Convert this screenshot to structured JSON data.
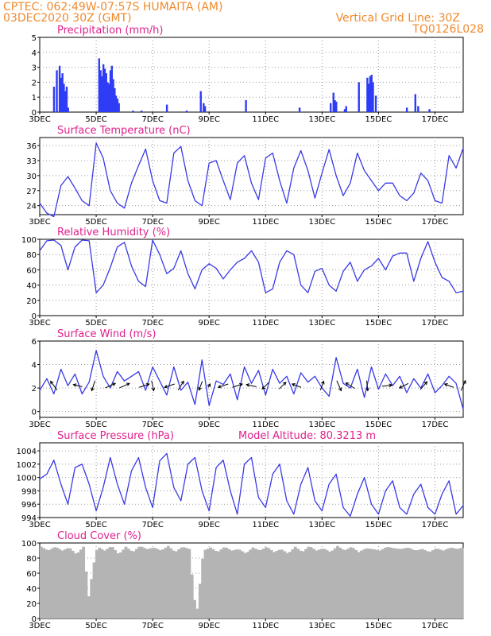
{
  "header": {
    "line1": "CPTEC:   062:49W-07:57S   HUMAITA (AM)",
    "line2": "03DEC2020 30Z (GMT)",
    "grid_note": "Vertical Grid Line: 30Z",
    "code": "TQ0126L028"
  },
  "colors": {
    "line": "#3a3ae6",
    "bar": "#2f3cf5",
    "cloud": "#b4b4b4",
    "title": "#e0208c",
    "header": "#f08a2c",
    "arrow": "#000000"
  },
  "x_tick_labels": [
    "3DEC",
    "5DEC",
    "7DEC",
    "9DEC",
    "11DEC",
    "13DEC",
    "15DEC",
    "17DEC"
  ],
  "chart_data": [
    {
      "id": "precip",
      "type": "bar",
      "title": "Precipitation (mm/h)",
      "ylim": [
        0,
        5
      ],
      "yticks": [
        0,
        1,
        2,
        3,
        4,
        5
      ],
      "x_days": [
        3.5,
        3.6,
        3.7,
        3.75,
        3.8,
        3.85,
        3.9,
        3.95,
        4.0,
        5.1,
        5.15,
        5.2,
        5.25,
        5.3,
        5.35,
        5.4,
        5.45,
        5.5,
        5.55,
        5.6,
        5.65,
        5.7,
        5.75,
        5.8,
        6.3,
        6.6,
        7.5,
        8.2,
        8.7,
        8.8,
        8.85,
        10.3,
        12.2,
        13.3,
        13.4,
        13.45,
        13.5,
        13.8,
        13.85,
        14.3,
        14.6,
        14.65,
        14.7,
        14.75,
        14.8,
        14.9,
        16.0,
        16.3,
        16.4,
        16.8
      ],
      "values": [
        1.7,
        2.8,
        3.1,
        2.3,
        2.6,
        1.9,
        1.4,
        1.7,
        0.3,
        3.6,
        2.8,
        2.4,
        3.2,
        2.9,
        2.6,
        2.0,
        1.9,
        2.8,
        3.1,
        2.2,
        1.6,
        1.1,
        0.9,
        0.6,
        0.1,
        0.1,
        0.5,
        0.1,
        1.4,
        0.6,
        0.4,
        0.8,
        0.3,
        0.6,
        1.3,
        0.8,
        0.7,
        0.2,
        0.4,
        2.0,
        2.3,
        1.9,
        2.4,
        2.5,
        2.0,
        1.1,
        0.3,
        1.2,
        0.4,
        0.2
      ]
    },
    {
      "id": "temp",
      "type": "line",
      "title": "Surface Temperature (nC)",
      "ylim": [
        22.2,
        37.6
      ],
      "yticks": [
        24,
        27,
        30,
        33,
        36
      ],
      "x_days": [
        3.0,
        3.25,
        3.5,
        3.75,
        4.0,
        4.25,
        4.5,
        4.75,
        5.0,
        5.25,
        5.5,
        5.75,
        6.0,
        6.25,
        6.5,
        6.75,
        7.0,
        7.25,
        7.5,
        7.75,
        8.0,
        8.25,
        8.5,
        8.75,
        9.0,
        9.25,
        9.5,
        9.75,
        10.0,
        10.25,
        10.5,
        10.75,
        11.0,
        11.25,
        11.5,
        11.75,
        12.0,
        12.25,
        12.5,
        12.75,
        13.0,
        13.25,
        13.5,
        13.75,
        14.0,
        14.25,
        14.5,
        14.75,
        15.0,
        15.25,
        15.5,
        15.75,
        16.0,
        16.25,
        16.5,
        16.75,
        17.0,
        17.25,
        17.5,
        17.75,
        18.0
      ],
      "values": [
        24.5,
        22.5,
        21.8,
        28.0,
        29.8,
        27.5,
        25.0,
        24.0,
        36.5,
        33.5,
        27.0,
        24.5,
        23.5,
        28.5,
        32.0,
        35.3,
        29.0,
        25.0,
        24.5,
        34.5,
        35.8,
        29.0,
        25.0,
        24.0,
        32.5,
        33.0,
        29.0,
        25.2,
        32.5,
        34.0,
        28.5,
        25.2,
        33.5,
        34.5,
        29.0,
        24.5,
        31.5,
        35.0,
        31.0,
        25.5,
        30.5,
        35.2,
        30.0,
        26.0,
        28.5,
        34.5,
        31.0,
        29.0,
        27.0,
        28.5,
        28.5,
        26.0,
        25.0,
        26.5,
        30.5,
        29.0,
        25.0,
        24.5,
        34.0,
        31.5,
        35.5
      ]
    },
    {
      "id": "rh",
      "type": "line",
      "title": "Relative Humidity (%)",
      "ylim": [
        0,
        100
      ],
      "yticks": [
        0,
        20,
        40,
        60,
        80,
        100
      ],
      "x_days": [
        3.0,
        3.25,
        3.5,
        3.75,
        4.0,
        4.25,
        4.5,
        4.75,
        5.0,
        5.25,
        5.5,
        5.75,
        6.0,
        6.25,
        6.5,
        6.75,
        7.0,
        7.25,
        7.5,
        7.75,
        8.0,
        8.25,
        8.5,
        8.75,
        9.0,
        9.25,
        9.5,
        9.75,
        10.0,
        10.25,
        10.5,
        10.75,
        11.0,
        11.25,
        11.5,
        11.75,
        12.0,
        12.25,
        12.5,
        12.75,
        13.0,
        13.25,
        13.5,
        13.75,
        14.0,
        14.25,
        14.5,
        14.75,
        15.0,
        15.25,
        15.5,
        15.75,
        16.0,
        16.25,
        16.5,
        16.75,
        17.0,
        17.25,
        17.5,
        17.75,
        18.0
      ],
      "values": [
        85,
        98,
        99,
        92,
        60,
        90,
        99,
        98,
        30,
        40,
        63,
        90,
        96,
        65,
        45,
        38,
        99,
        80,
        55,
        62,
        85,
        55,
        35,
        60,
        68,
        62,
        48,
        60,
        70,
        75,
        85,
        70,
        30,
        35,
        70,
        85,
        80,
        40,
        30,
        58,
        62,
        40,
        32,
        58,
        70,
        45,
        60,
        65,
        75,
        60,
        78,
        82,
        82,
        45,
        75,
        97,
        70,
        50,
        45,
        30,
        32
      ]
    },
    {
      "id": "wind",
      "type": "line",
      "title": "Surface Wind (m/s)",
      "ylim": [
        -0.5,
        6
      ],
      "yticks": [
        0,
        2,
        4,
        6
      ],
      "x_days": [
        3.0,
        3.25,
        3.5,
        3.75,
        4.0,
        4.25,
        4.5,
        4.75,
        5.0,
        5.25,
        5.5,
        5.75,
        6.0,
        6.25,
        6.5,
        6.75,
        7.0,
        7.25,
        7.5,
        7.75,
        8.0,
        8.25,
        8.5,
        8.75,
        9.0,
        9.25,
        9.5,
        9.75,
        10.0,
        10.25,
        10.5,
        10.75,
        11.0,
        11.25,
        11.5,
        11.75,
        12.0,
        12.25,
        12.5,
        12.75,
        13.0,
        13.25,
        13.5,
        13.75,
        14.0,
        14.25,
        14.5,
        14.75,
        15.0,
        15.25,
        15.5,
        15.75,
        16.0,
        16.25,
        16.5,
        16.75,
        17.0,
        17.25,
        17.5,
        17.75,
        18.0
      ],
      "values": [
        1.8,
        2.8,
        1.5,
        3.6,
        2.2,
        3.2,
        1.5,
        2.5,
        5.2,
        3.0,
        2.0,
        3.4,
        2.6,
        3.0,
        3.4,
        1.8,
        3.8,
        2.6,
        1.4,
        3.8,
        1.8,
        2.5,
        0.6,
        4.4,
        0.5,
        2.6,
        2.3,
        3.2,
        1.0,
        3.8,
        2.4,
        3.5,
        1.4,
        3.6,
        2.4,
        3.0,
        1.5,
        3.3,
        2.5,
        3.0,
        2.0,
        1.3,
        4.6,
        2.4,
        2.0,
        3.6,
        1.2,
        3.8,
        1.9,
        3.2,
        2.2,
        3.0,
        1.6,
        2.8,
        2.0,
        3.2,
        1.6,
        2.2,
        3.0,
        2.4,
        0.2
      ],
      "vectors": [
        {
          "day": 3.5,
          "u": -0.6,
          "v": 0.8
        },
        {
          "day": 4.35,
          "u": -0.8,
          "v": 0.2
        },
        {
          "day": 4.9,
          "u": -0.3,
          "v": -0.9
        },
        {
          "day": 5.5,
          "u": 0.9,
          "v": 0.4
        },
        {
          "day": 6.0,
          "u": 0.9,
          "v": 0.4
        },
        {
          "day": 6.7,
          "u": 0.9,
          "v": 0.3
        },
        {
          "day": 7.0,
          "u": 0.2,
          "v": -0.9
        },
        {
          "day": 7.6,
          "u": -0.9,
          "v": -0.3
        },
        {
          "day": 8.0,
          "u": 0.5,
          "v": 0.8
        },
        {
          "day": 8.7,
          "u": -0.3,
          "v": -0.8
        },
        {
          "day": 9.0,
          "u": 0.2,
          "v": 0.3
        },
        {
          "day": 9.5,
          "u": -0.9,
          "v": -0.3
        },
        {
          "day": 10.0,
          "u": 0.9,
          "v": 0.3
        },
        {
          "day": 10.5,
          "u": -0.9,
          "v": 0.2
        },
        {
          "day": 11.0,
          "u": -0.6,
          "v": -0.6
        },
        {
          "day": 11.6,
          "u": 0.6,
          "v": 0.6
        },
        {
          "day": 12.1,
          "u": -0.8,
          "v": 0.3
        },
        {
          "day": 13.0,
          "u": 0.3,
          "v": 0.8
        },
        {
          "day": 13.6,
          "u": 0.4,
          "v": -0.9
        },
        {
          "day": 14.0,
          "u": -0.8,
          "v": 0.5
        },
        {
          "day": 14.6,
          "u": 0.1,
          "v": -0.9
        },
        {
          "day": 15.3,
          "u": 0.9,
          "v": 0.1
        },
        {
          "day": 15.9,
          "u": -0.8,
          "v": -0.4
        },
        {
          "day": 16.6,
          "u": 0.6,
          "v": 0.7
        },
        {
          "day": 17.5,
          "u": -0.8,
          "v": 0.3
        },
        {
          "day": 18.0,
          "u": 0.4,
          "v": 0.9
        }
      ]
    },
    {
      "id": "pres",
      "type": "line",
      "title": "Surface Pressure (hPa)",
      "annotation": "Model Altitude: 80.3213 m",
      "ylim": [
        994,
        1005.2
      ],
      "yticks": [
        994,
        996,
        998,
        1000,
        1002,
        1004
      ],
      "x_days": [
        3.0,
        3.25,
        3.5,
        3.75,
        4.0,
        4.25,
        4.5,
        4.75,
        5.0,
        5.25,
        5.5,
        5.75,
        6.0,
        6.25,
        6.5,
        6.75,
        7.0,
        7.25,
        7.5,
        7.75,
        8.0,
        8.25,
        8.5,
        8.75,
        9.0,
        9.25,
        9.5,
        9.75,
        10.0,
        10.25,
        10.5,
        10.75,
        11.0,
        11.25,
        11.5,
        11.75,
        12.0,
        12.25,
        12.5,
        12.75,
        13.0,
        13.25,
        13.5,
        13.75,
        14.0,
        14.25,
        14.5,
        14.75,
        15.0,
        15.25,
        15.5,
        15.75,
        16.0,
        16.25,
        16.5,
        16.75,
        17.0,
        17.25,
        17.5,
        17.75,
        18.0
      ],
      "values": [
        999.8,
        1000.5,
        1002.6,
        999.0,
        996.0,
        1001.5,
        1002.0,
        999.0,
        995.0,
        998.5,
        1003.0,
        999.0,
        996.0,
        1001.0,
        1003.0,
        998.5,
        995.5,
        1002.5,
        1003.6,
        998.5,
        996.5,
        1002.0,
        1003.0,
        998.0,
        995.0,
        1001.5,
        1002.6,
        998.0,
        994.5,
        1002.0,
        1003.0,
        997.0,
        995.5,
        1000.5,
        1002.0,
        996.5,
        994.5,
        999.0,
        1001.5,
        996.5,
        995.0,
        999.0,
        1000.5,
        995.5,
        994.2,
        997.5,
        1000.0,
        996.0,
        994.5,
        998.0,
        999.5,
        995.5,
        994.5,
        997.5,
        999.0,
        995.5,
        994.5,
        997.5,
        999.5,
        994.5,
        995.8
      ]
    },
    {
      "id": "cloud",
      "type": "bar",
      "title": "Cloud Cover (%)",
      "ylim": [
        0,
        100
      ],
      "yticks": [
        0,
        20,
        40,
        60,
        80,
        100
      ],
      "x_days": [
        3.0,
        3.25,
        3.5,
        3.75,
        4.0,
        4.25,
        4.5,
        4.7,
        4.75,
        4.9,
        5.0,
        5.25,
        5.5,
        5.75,
        6.0,
        6.25,
        6.5,
        6.75,
        7.0,
        7.25,
        7.5,
        7.75,
        8.0,
        8.25,
        8.5,
        8.75,
        9.0,
        9.25,
        9.5,
        9.75,
        10.0,
        10.25,
        10.5,
        10.75,
        11.0,
        11.25,
        11.5,
        11.75,
        12.0,
        12.25,
        12.5,
        12.75,
        13.0,
        13.25,
        13.5,
        13.75,
        14.0,
        14.25,
        14.5,
        14.75,
        15.0,
        15.25,
        15.5,
        15.75,
        16.0,
        16.25,
        16.5,
        16.75,
        17.0,
        17.25,
        17.5,
        17.75,
        18.0
      ],
      "values": [
        95,
        90,
        95,
        90,
        94,
        85,
        95,
        25,
        45,
        80,
        95,
        90,
        96,
        85,
        95,
        88,
        96,
        92,
        94,
        90,
        96,
        88,
        95,
        92,
        2,
        90,
        94,
        88,
        95,
        90,
        92,
        86,
        94,
        90,
        95,
        88,
        92,
        86,
        95,
        88,
        96,
        90,
        93,
        88,
        96,
        90,
        95,
        88,
        93,
        92,
        90,
        95,
        93,
        92,
        94,
        90,
        92,
        88,
        93,
        90,
        94,
        92,
        95
      ]
    }
  ]
}
